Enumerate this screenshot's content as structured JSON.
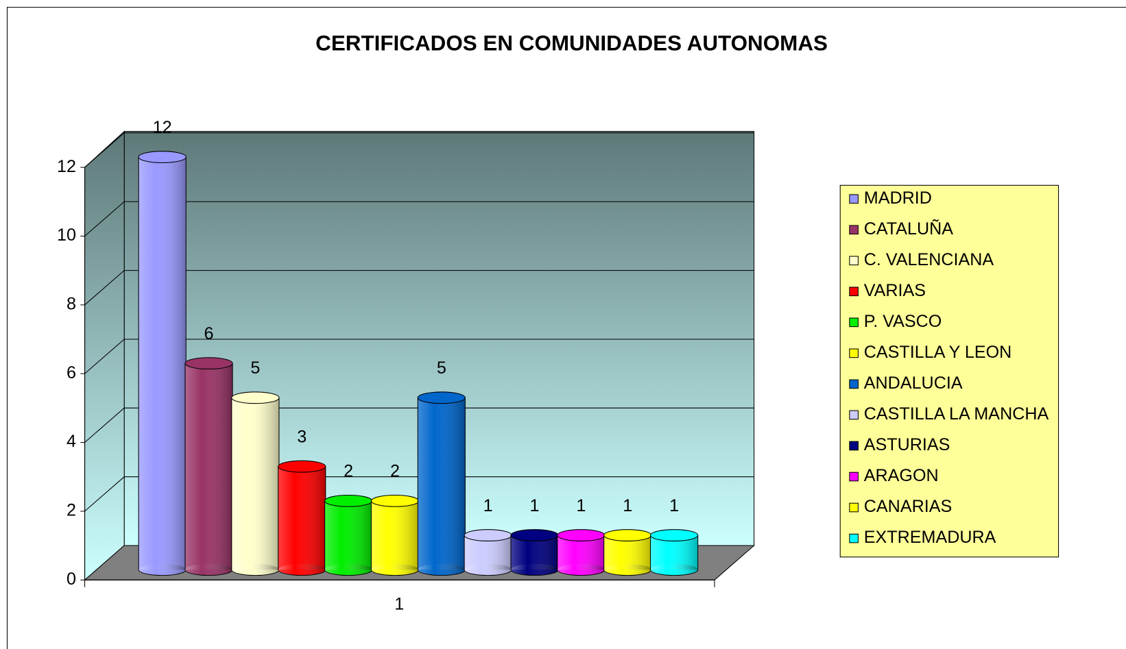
{
  "chart_data": {
    "type": "bar",
    "title": "CERTIFICADOS EN COMUNIDADES AUTONOMAS",
    "categories": [
      "1"
    ],
    "series": [
      {
        "name": "MADRID",
        "color": "#9999ff",
        "values": [
          12
        ]
      },
      {
        "name": "CATALUÑA",
        "color": "#993366",
        "values": [
          6
        ]
      },
      {
        "name": "C. VALENCIANA",
        "color": "#ffffcc",
        "values": [
          5
        ]
      },
      {
        "name": "VARIAS",
        "color": "#ff0000",
        "values": [
          3
        ]
      },
      {
        "name": "P. VASCO",
        "color": "#00ee00",
        "values": [
          2
        ]
      },
      {
        "name": "CASTILLA Y LEON",
        "color": "#ffff00",
        "values": [
          2
        ]
      },
      {
        "name": "ANDALUCIA",
        "color": "#0066cc",
        "values": [
          5
        ]
      },
      {
        "name": "CASTILLA LA MANCHA",
        "color": "#ccccff",
        "values": [
          1
        ]
      },
      {
        "name": "ASTURIAS",
        "color": "#000080",
        "values": [
          1
        ]
      },
      {
        "name": "ARAGON",
        "color": "#ff00ff",
        "values": [
          1
        ]
      },
      {
        "name": "CANARIAS",
        "color": "#ffff00",
        "values": [
          1
        ]
      },
      {
        "name": "EXTREMADURA",
        "color": "#00ffff",
        "values": [
          1
        ]
      }
    ],
    "ylim": [
      0,
      12
    ],
    "yticks": [
      0,
      2,
      4,
      6,
      8,
      10,
      12
    ],
    "grid": true,
    "legend": "right"
  }
}
